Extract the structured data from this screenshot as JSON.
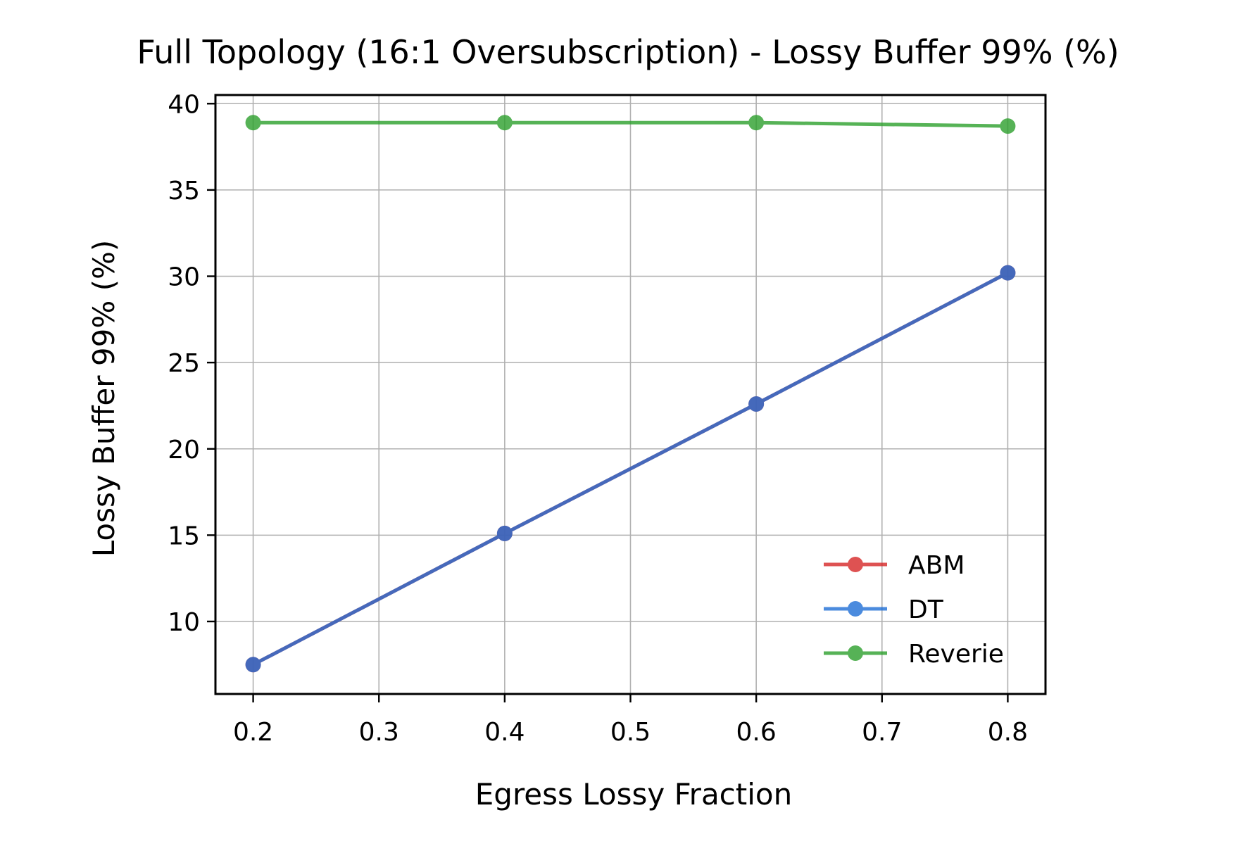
{
  "chart_data": {
    "type": "line",
    "title": "Full Topology (16:1 Oversubscription) - Lossy Buffer 99% (%)",
    "xlabel": "Egress Lossy Fraction",
    "ylabel": "Lossy Buffer 99% (%)",
    "x": [
      0.2,
      0.4,
      0.6,
      0.8
    ],
    "xlim": [
      0.17,
      0.83
    ],
    "ylim": [
      5.8,
      40.5
    ],
    "xticks": [
      0.2,
      0.3,
      0.4,
      0.5,
      0.6,
      0.7,
      0.8
    ],
    "xtick_labels": [
      "0.2",
      "0.3",
      "0.4",
      "0.5",
      "0.6",
      "0.7",
      "0.8"
    ],
    "yticks": [
      10,
      15,
      20,
      25,
      30,
      35,
      40
    ],
    "ytick_labels": [
      "10",
      "15",
      "20",
      "25",
      "30",
      "35",
      "40"
    ],
    "grid": true,
    "legend_position": "lower-right",
    "series": [
      {
        "name": "ABM",
        "color": "#d62728",
        "values": [
          7.5,
          15.1,
          22.6,
          30.2
        ]
      },
      {
        "name": "DT",
        "color": "#1f6fd6",
        "values": [
          7.5,
          15.1,
          22.6,
          30.2
        ]
      },
      {
        "name": "Reverie",
        "color": "#2ca02c",
        "values": [
          38.9,
          38.9,
          38.9,
          38.7
        ]
      }
    ]
  }
}
